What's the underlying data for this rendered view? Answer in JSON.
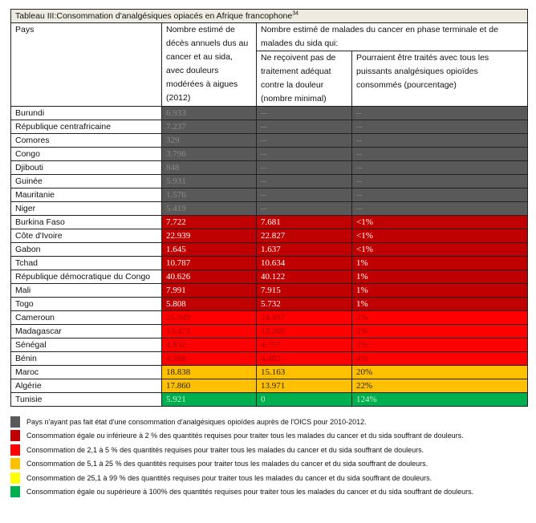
{
  "title": "Tableau III:Consommation d'analgésiques opiacés en Afrique francophone",
  "title_sup": "34",
  "headers": {
    "country": "Pays",
    "deaths": "Nombre estimé de décès annuels dus au cancer et au sida, avec douleurs modérées à aigues (2012)",
    "group": "Nombre estimé de malades du cancer en phase terminale et de malades du sida qui:",
    "untreated": "Ne reçoivent pas de traitement adéquat contre la douleur (nombre minimal)",
    "percent": "Pourraient être traités avec tous les puissants analgésiques opioïdes consommés (pourcentage)"
  },
  "colors": {
    "gray": "#595959",
    "darkred": "#c00000",
    "red": "#ff0000",
    "orange": "#ffc000",
    "yellow": "#ffff00",
    "green": "#00b050"
  },
  "rows": [
    {
      "country": "Burundi",
      "deaths": "6.933",
      "untreated": "--",
      "percent": "--",
      "cat": "gray"
    },
    {
      "country": "République centrafricaine",
      "deaths": "7.237",
      "untreated": "--",
      "percent": "--",
      "cat": "gray"
    },
    {
      "country": "Comores",
      "deaths": "329",
      "untreated": "--",
      "percent": "--",
      "cat": "gray"
    },
    {
      "country": "Congo",
      "deaths": "3.796",
      "untreated": "--",
      "percent": "--",
      "cat": "gray"
    },
    {
      "country": "Djibouti",
      "deaths": "848",
      "untreated": "--",
      "percent": "--",
      "cat": "gray"
    },
    {
      "country": "Guinée",
      "deaths": "5.931",
      "untreated": "--",
      "percent": "--",
      "cat": "gray"
    },
    {
      "country": "Mauritanie",
      "deaths": "1.576",
      "untreated": "--",
      "percent": "--",
      "cat": "gray"
    },
    {
      "country": "Niger",
      "deaths": "5.419",
      "untreated": "--",
      "percent": "--",
      "cat": "gray"
    },
    {
      "country": "Burkina Faso",
      "deaths": "7.722",
      "untreated": "7.681",
      "percent": "<1%",
      "cat": "darkred"
    },
    {
      "country": "Côte d'Ivoire",
      "deaths": "22.939",
      "untreated": "22.827",
      "percent": "<1%",
      "cat": "darkred"
    },
    {
      "country": "Gabon",
      "deaths": "1.645",
      "untreated": "1.637",
      "percent": "<1%",
      "cat": "darkred"
    },
    {
      "country": "Tchad",
      "deaths": "10.787",
      "untreated": "10.634",
      "percent": "1%",
      "cat": "darkred"
    },
    {
      "country": "République démocratique du Congo",
      "deaths": "40.626",
      "untreated": "40.122",
      "percent": "1%",
      "cat": "darkred"
    },
    {
      "country": "Mali",
      "deaths": "7.991",
      "untreated": "7.915",
      "percent": "1%",
      "cat": "darkred"
    },
    {
      "country": "Togo",
      "deaths": "5.808",
      "untreated": "5.732",
      "percent": "1%",
      "cat": "darkred"
    },
    {
      "country": "Cameroun",
      "deaths": "25.049",
      "untreated": "24.497",
      "percent": "2%",
      "cat": "red"
    },
    {
      "country": "Madagascar",
      "deaths": "13.473",
      "untreated": "13.269",
      "percent": "2%",
      "cat": "red"
    },
    {
      "country": "Sénégal",
      "deaths": "4.832",
      "untreated": "4.757",
      "percent": "2%",
      "cat": "red"
    },
    {
      "country": "Bénin",
      "deaths": "4.568",
      "untreated": "4.402",
      "percent": "4%",
      "cat": "red"
    },
    {
      "country": "Maroc",
      "deaths": "18.838",
      "untreated": "15.163",
      "percent": "20%",
      "cat": "orange"
    },
    {
      "country": "Algérie",
      "deaths": "17.860",
      "untreated": "13.971",
      "percent": "22%",
      "cat": "orange"
    },
    {
      "country": "Tunisie",
      "deaths": "5.921",
      "untreated": "0",
      "percent": "124%",
      "cat": "green"
    }
  ],
  "legend": [
    {
      "cat": "gray",
      "text": "Pays n'ayant pas fait état d'une consommation d'analgésiques opioïdes auprès de l'OICS pour 2010-2012."
    },
    {
      "cat": "darkred",
      "text": "Consommation égale ou inférieure à 2 % des quantités requises pour traiter tous les malades du cancer et du sida souffrant de douleurs."
    },
    {
      "cat": "red",
      "text": "Consommation de 2,1 à 5 % des quantités requises pour traiter tous les malades du cancer et du sida souffrant de douleurs."
    },
    {
      "cat": "orange",
      "text": "Consommation de 5,1 à 25 % des quantités requises pour traiter tous les malades du cancer et du sida souffrant de douleurs."
    },
    {
      "cat": "yellow",
      "text": "Consommation de 25,1 à 99 % des quantités requises pour traiter tous les malades du cancer et du sida souffrant de douleurs."
    },
    {
      "cat": "green",
      "text": "Consommation égale ou supérieure à 100% des quantités requises pour traiter tous les malades du cancer et du sida souffrant de douleurs."
    }
  ]
}
